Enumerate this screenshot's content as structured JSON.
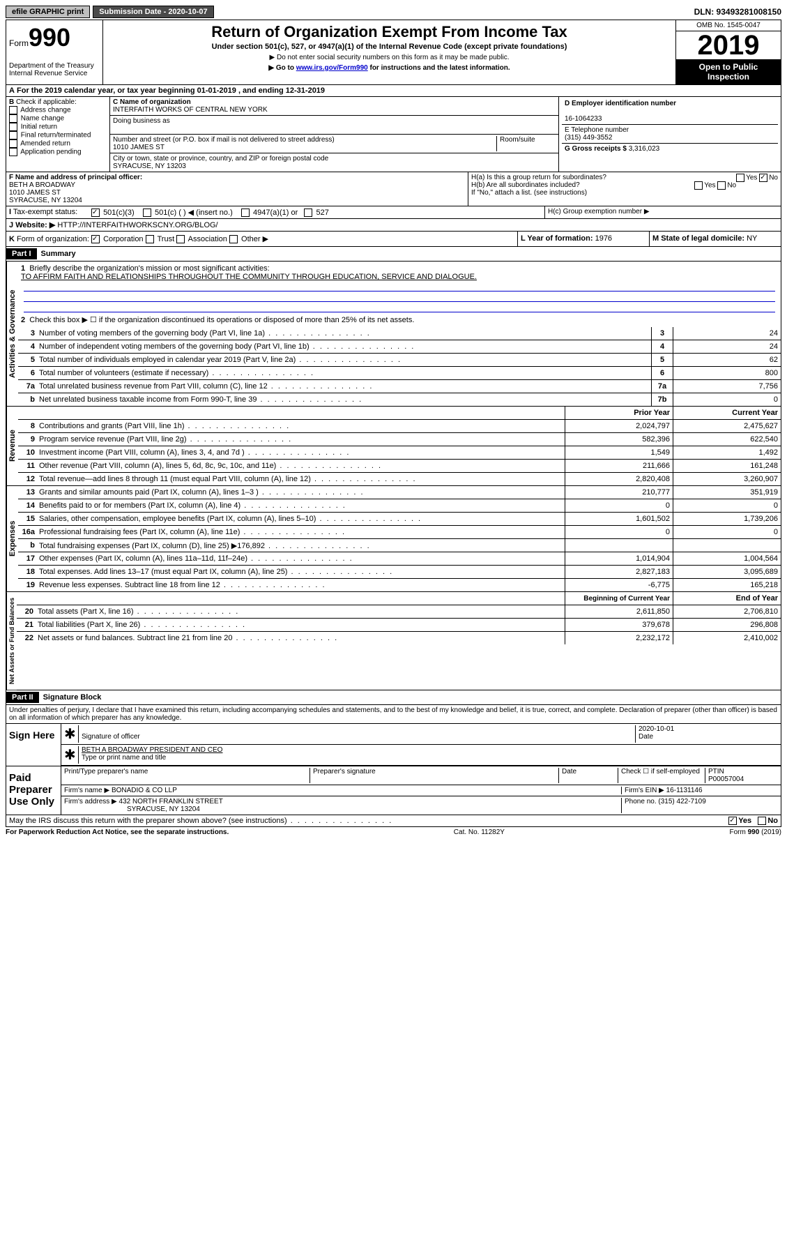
{
  "top": {
    "efile": "efile GRAPHIC print",
    "submission": "Submission Date - 2020-10-07",
    "dln": "DLN: 93493281008150"
  },
  "header": {
    "form_label": "Form",
    "form_num": "990",
    "dept": "Department of the Treasury\nInternal Revenue Service",
    "title": "Return of Organization Exempt From Income Tax",
    "subtitle": "Under section 501(c), 527, or 4947(a)(1) of the Internal Revenue Code (except private foundations)",
    "note1": "▶ Do not enter social security numbers on this form as it may be made public.",
    "note2": "▶ Go to www.irs.gov/Form990 for instructions and the latest information.",
    "omb": "OMB No. 1545-0047",
    "year": "2019",
    "open": "Open to Public Inspection"
  },
  "a": {
    "text": "For the 2019 calendar year, or tax year beginning 01-01-2019   , and ending 12-31-2019"
  },
  "b": {
    "label": "Check if applicable:",
    "opts": [
      "Address change",
      "Name change",
      "Initial return",
      "Final return/terminated",
      "Amended return",
      "Application pending"
    ]
  },
  "c": {
    "label": "C Name of organization",
    "name": "INTERFAITH WORKS OF CENTRAL NEW YORK",
    "dba_label": "Doing business as",
    "addr_label": "Number and street (or P.O. box if mail is not delivered to street address)",
    "room_label": "Room/suite",
    "addr": "1010 JAMES ST",
    "city_label": "City or town, state or province, country, and ZIP or foreign postal code",
    "city": "SYRACUSE, NY  13203"
  },
  "d": {
    "label": "D Employer identification number",
    "val": "16-1064233"
  },
  "e": {
    "label": "E Telephone number",
    "val": "(315) 449-3552"
  },
  "g": {
    "label": "G Gross receipts $",
    "val": "3,316,023"
  },
  "f": {
    "label": "F  Name and address of principal officer:",
    "name": "BETH A BROADWAY",
    "addr": "1010 JAMES ST",
    "city": "SYRACUSE, NY  13204"
  },
  "h": {
    "a_label": "H(a)  Is this a group return for subordinates?",
    "b_label": "H(b)  Are all subordinates included?",
    "note": "If \"No,\" attach a list. (see instructions)",
    "c_label": "H(c)  Group exemption number ▶"
  },
  "i": {
    "label": "Tax-exempt status:",
    "c3": "501(c)(3)",
    "c": "501(c) (  ) ◀ (insert no.)",
    "a1": "4947(a)(1) or",
    "527": "527"
  },
  "j": {
    "label": "Website: ▶",
    "val": "HTTP://INTERFAITHWORKSCNY.ORG/BLOG/"
  },
  "k": {
    "label": "Form of organization:",
    "opts": [
      "Corporation",
      "Trust",
      "Association",
      "Other ▶"
    ]
  },
  "l": {
    "label": "L Year of formation:",
    "val": "1976"
  },
  "m": {
    "label": "M State of legal domicile:",
    "val": "NY"
  },
  "part1": {
    "hdr": "Part I",
    "title": "Summary",
    "tab_gov": "Activities & Governance",
    "tab_rev": "Revenue",
    "tab_exp": "Expenses",
    "tab_net": "Net Assets or Fund Balances",
    "l1": "Briefly describe the organization's mission or most significant activities:",
    "l1_val": "TO AFFIRM FAITH AND RELATIONSHIPS THROUGHOUT THE COMMUNITY THROUGH EDUCATION, SERVICE AND DIALOGUE.",
    "l2": "Check this box ▶ ☐  if the organization discontinued its operations or disposed of more than 25% of its net assets.",
    "lines": [
      {
        "n": "3",
        "t": "Number of voting members of the governing body (Part VI, line 1a)",
        "b": "3",
        "v": "24"
      },
      {
        "n": "4",
        "t": "Number of independent voting members of the governing body (Part VI, line 1b)",
        "b": "4",
        "v": "24"
      },
      {
        "n": "5",
        "t": "Total number of individuals employed in calendar year 2019 (Part V, line 2a)",
        "b": "5",
        "v": "62"
      },
      {
        "n": "6",
        "t": "Total number of volunteers (estimate if necessary)",
        "b": "6",
        "v": "800"
      },
      {
        "n": "7a",
        "t": "Total unrelated business revenue from Part VIII, column (C), line 12",
        "b": "7a",
        "v": "7,756"
      },
      {
        "n": "b",
        "t": "Net unrelated business taxable income from Form 990-T, line 39",
        "b": "7b",
        "v": "0"
      }
    ],
    "col_prior": "Prior Year",
    "col_current": "Current Year",
    "rev": [
      {
        "n": "8",
        "t": "Contributions and grants (Part VIII, line 1h)",
        "p": "2,024,797",
        "c": "2,475,627"
      },
      {
        "n": "9",
        "t": "Program service revenue (Part VIII, line 2g)",
        "p": "582,396",
        "c": "622,540"
      },
      {
        "n": "10",
        "t": "Investment income (Part VIII, column (A), lines 3, 4, and 7d )",
        "p": "1,549",
        "c": "1,492"
      },
      {
        "n": "11",
        "t": "Other revenue (Part VIII, column (A), lines 5, 6d, 8c, 9c, 10c, and 11e)",
        "p": "211,666",
        "c": "161,248"
      },
      {
        "n": "12",
        "t": "Total revenue—add lines 8 through 11 (must equal Part VIII, column (A), line 12)",
        "p": "2,820,408",
        "c": "3,260,907"
      }
    ],
    "exp": [
      {
        "n": "13",
        "t": "Grants and similar amounts paid (Part IX, column (A), lines 1–3 )",
        "p": "210,777",
        "c": "351,919"
      },
      {
        "n": "14",
        "t": "Benefits paid to or for members (Part IX, column (A), line 4)",
        "p": "0",
        "c": "0"
      },
      {
        "n": "15",
        "t": "Salaries, other compensation, employee benefits (Part IX, column (A), lines 5–10)",
        "p": "1,601,502",
        "c": "1,739,206"
      },
      {
        "n": "16a",
        "t": "Professional fundraising fees (Part IX, column (A), line 11e)",
        "p": "0",
        "c": "0"
      },
      {
        "n": "b",
        "t": "Total fundraising expenses (Part IX, column (D), line 25) ▶176,892",
        "p": "",
        "c": ""
      },
      {
        "n": "17",
        "t": "Other expenses (Part IX, column (A), lines 11a–11d, 11f–24e)",
        "p": "1,014,904",
        "c": "1,004,564"
      },
      {
        "n": "18",
        "t": "Total expenses. Add lines 13–17 (must equal Part IX, column (A), line 25)",
        "p": "2,827,183",
        "c": "3,095,689"
      },
      {
        "n": "19",
        "t": "Revenue less expenses. Subtract line 18 from line 12",
        "p": "-6,775",
        "c": "165,218"
      }
    ],
    "col_begin": "Beginning of Current Year",
    "col_end": "End of Year",
    "net": [
      {
        "n": "20",
        "t": "Total assets (Part X, line 16)",
        "p": "2,611,850",
        "c": "2,706,810"
      },
      {
        "n": "21",
        "t": "Total liabilities (Part X, line 26)",
        "p": "379,678",
        "c": "296,808"
      },
      {
        "n": "22",
        "t": "Net assets or fund balances. Subtract line 21 from line 20",
        "p": "2,232,172",
        "c": "2,410,002"
      }
    ]
  },
  "part2": {
    "hdr": "Part II",
    "title": "Signature Block",
    "decl": "Under penalties of perjury, I declare that I have examined this return, including accompanying schedules and statements, and to the best of my knowledge and belief, it is true, correct, and complete. Declaration of preparer (other than officer) is based on all information of which preparer has any knowledge.",
    "sign_here": "Sign Here",
    "sig_officer": "Signature of officer",
    "date": "2020-10-01",
    "date_lbl": "Date",
    "name_title": "BETH A BROADWAY  PRESIDENT AND CEO",
    "type_name": "Type or print name and title",
    "paid": "Paid Preparer Use Only",
    "prep_name_lbl": "Print/Type preparer's name",
    "prep_sig_lbl": "Preparer's signature",
    "check_lbl": "Check ☐ if self-employed",
    "ptin_lbl": "PTIN",
    "ptin": "P00057004",
    "firm_name_lbl": "Firm's name     ▶",
    "firm_name": "BONADIO & CO LLP",
    "firm_ein_lbl": "Firm's EIN ▶",
    "firm_ein": "16-1131146",
    "firm_addr_lbl": "Firm's address ▶",
    "firm_addr": "432 NORTH FRANKLIN STREET",
    "firm_city": "SYRACUSE, NY  13204",
    "phone_lbl": "Phone no.",
    "phone": "(315) 422-7109",
    "discuss": "May the IRS discuss this return with the preparer shown above? (see instructions)",
    "yes": "Yes",
    "no": "No"
  },
  "footer": {
    "left": "For Paperwork Reduction Act Notice, see the separate instructions.",
    "mid": "Cat. No. 11282Y",
    "right": "Form 990 (2019)"
  }
}
